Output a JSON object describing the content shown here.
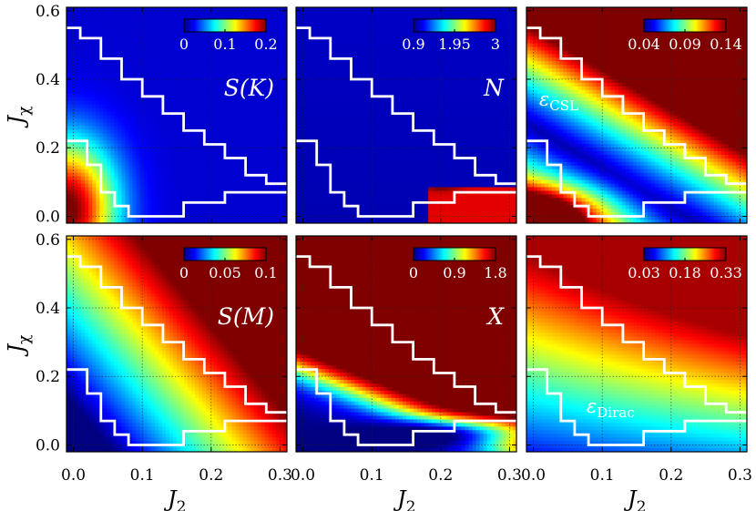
{
  "colors": {
    "boundary": "#ffffff",
    "grid": "#222222"
  },
  "chart_data": {
    "type": "heatmap",
    "x_axis": {
      "label": "J",
      "label_sub": "2",
      "range": [
        -0.01,
        0.31
      ],
      "ticks": [
        "0.0",
        "0.1",
        "0.2",
        "0.3"
      ],
      "tick_values": [
        0.0,
        0.1,
        0.2,
        0.3
      ]
    },
    "y_axis": {
      "label": "J",
      "label_sub": "χ",
      "range": [
        -0.02,
        0.61
      ],
      "ticks": [
        "0.0",
        "0.2",
        "0.4",
        "0.6"
      ],
      "tick_values": [
        0.0,
        0.2,
        0.4,
        0.6
      ]
    },
    "grid": true,
    "colormap": "jet",
    "phase_boundaries": {
      "upper": [
        [
          -0.01,
          0.55
        ],
        [
          0.01,
          0.55
        ],
        [
          0.01,
          0.52
        ],
        [
          0.04,
          0.52
        ],
        [
          0.04,
          0.46
        ],
        [
          0.07,
          0.46
        ],
        [
          0.07,
          0.4
        ],
        [
          0.1,
          0.4
        ],
        [
          0.1,
          0.35
        ],
        [
          0.13,
          0.35
        ],
        [
          0.13,
          0.3
        ],
        [
          0.16,
          0.3
        ],
        [
          0.16,
          0.25
        ],
        [
          0.19,
          0.25
        ],
        [
          0.19,
          0.21
        ],
        [
          0.22,
          0.21
        ],
        [
          0.22,
          0.17
        ],
        [
          0.25,
          0.17
        ],
        [
          0.25,
          0.12
        ],
        [
          0.28,
          0.12
        ],
        [
          0.28,
          0.095
        ],
        [
          0.31,
          0.095
        ]
      ],
      "lower": [
        [
          -0.01,
          0.22
        ],
        [
          0.02,
          0.22
        ],
        [
          0.02,
          0.15
        ],
        [
          0.04,
          0.15
        ],
        [
          0.04,
          0.07
        ],
        [
          0.06,
          0.07
        ],
        [
          0.06,
          0.03
        ],
        [
          0.08,
          0.03
        ],
        [
          0.08,
          0.0
        ],
        [
          0.16,
          0.0
        ],
        [
          0.16,
          0.04
        ],
        [
          0.22,
          0.04
        ],
        [
          0.22,
          0.07
        ],
        [
          0.31,
          0.07
        ]
      ]
    },
    "panels": [
      {
        "id": "S_K",
        "label": "S(K)",
        "row": 0,
        "col": 0,
        "colorbar_ticks": [
          "0",
          "0.1",
          "0.2"
        ],
        "range": [
          0,
          0.2
        ]
      },
      {
        "id": "N",
        "label": "N",
        "row": 0,
        "col": 1,
        "colorbar_ticks": [
          "0.9",
          "1.95",
          "3"
        ],
        "range": [
          0.9,
          3
        ]
      },
      {
        "id": "eps_CSL",
        "label": "ε",
        "label_sub": "CSL",
        "row": 0,
        "col": 2,
        "colorbar_ticks": [
          "0.04",
          "0.09",
          "0.14"
        ],
        "range": [
          0.04,
          0.14
        ]
      },
      {
        "id": "S_M",
        "label": "S(M)",
        "row": 1,
        "col": 0,
        "colorbar_ticks": [
          "0",
          "0.05",
          "0.1"
        ],
        "range": [
          0,
          0.1
        ]
      },
      {
        "id": "X",
        "label": "X",
        "row": 1,
        "col": 1,
        "colorbar_ticks": [
          "0",
          "0.9",
          "1.8"
        ],
        "range": [
          0,
          1.8
        ]
      },
      {
        "id": "eps_Dirac",
        "label": "ε",
        "label_sub": "Dirac",
        "row": 1,
        "col": 2,
        "colorbar_ticks": [
          "0.03",
          "0.18",
          "0.33"
        ],
        "range": [
          0.03,
          0.33
        ]
      }
    ]
  }
}
